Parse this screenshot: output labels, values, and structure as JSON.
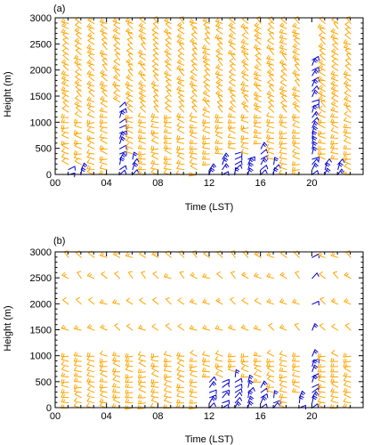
{
  "chart_data": [
    {
      "type": "wind-barb",
      "panel_label": "(a)",
      "xlabel": "Time (LST)",
      "ylabel": "Height (m)",
      "xlim": [
        0,
        24
      ],
      "ylim": [
        0,
        3000
      ],
      "xticklabels": [
        "00",
        "04",
        "08",
        "12",
        "16",
        "20"
      ],
      "xticks": [
        0,
        4,
        8,
        12,
        16,
        20
      ],
      "yticks": [
        0,
        500,
        1000,
        1500,
        2000,
        2500,
        3000
      ],
      "time_resolution_h": 1,
      "heights_m": [
        0,
        100,
        200,
        300,
        400,
        500,
        600,
        700,
        800,
        900,
        1000,
        1100,
        1200,
        1300,
        1400,
        1500,
        1600,
        1700,
        1800,
        1900,
        2000,
        2100,
        2200,
        2300,
        2400,
        2500,
        2600,
        2700,
        2800,
        2900
      ],
      "times_h": [
        1,
        2,
        3,
        4,
        5,
        6,
        7,
        8,
        9,
        10,
        11,
        12,
        13,
        14,
        15,
        16,
        17,
        18,
        19,
        20,
        21,
        22,
        23
      ],
      "colors": {
        "downslope": "#ffa500",
        "upslope": "#0000cd",
        "other": "#ff0000"
      },
      "blue_top_m": [
        100,
        100,
        0,
        0,
        1300,
        300,
        0,
        0,
        0,
        0,
        0,
        100,
        300,
        400,
        300,
        500,
        200,
        0,
        0,
        2200,
        200,
        200,
        0
      ],
      "missing_above_m": [
        2900,
        2900,
        2900,
        2900,
        2900,
        2900,
        2900,
        2900,
        2900,
        2900,
        2900,
        2900,
        2900,
        2900,
        2900,
        2900,
        2900,
        2900,
        2900,
        2200,
        2900,
        2900,
        2900
      ]
    },
    {
      "type": "wind-barb",
      "panel_label": "(b)",
      "xlabel": "Time (LST)",
      "ylabel": "Height (m)",
      "xlim": [
        0,
        24
      ],
      "ylim": [
        0,
        3000
      ],
      "xticklabels": [
        "00",
        "04",
        "08",
        "12",
        "16",
        "20"
      ],
      "xticks": [
        0,
        4,
        8,
        12,
        16,
        20
      ],
      "yticks": [
        0,
        500,
        1000,
        1500,
        2000,
        2500,
        3000
      ],
      "time_resolution_h": 1,
      "heights_m": [
        0,
        100,
        200,
        300,
        400,
        500,
        600,
        700,
        800,
        900,
        1000,
        1500,
        2000,
        2500,
        2900
      ],
      "times_h": [
        1,
        2,
        3,
        4,
        5,
        6,
        7,
        8,
        9,
        10,
        11,
        12,
        13,
        14,
        15,
        16,
        17,
        18,
        19,
        20,
        21,
        22,
        23
      ],
      "colors": {
        "downslope": "#ffa500",
        "upslope": "#0000cd",
        "other": "#ff0000"
      },
      "blue_top_m": [
        0,
        0,
        0,
        0,
        0,
        0,
        0,
        0,
        0,
        0,
        0,
        500,
        500,
        600,
        500,
        400,
        200,
        0,
        200,
        2900,
        0,
        0,
        0
      ],
      "missing_above_m": [
        2900,
        2900,
        2900,
        2900,
        2900,
        2900,
        2900,
        2900,
        2900,
        2900,
        2900,
        2900,
        2900,
        2900,
        2900,
        2900,
        2900,
        2900,
        2900,
        2900,
        2900,
        2900,
        2900
      ]
    }
  ]
}
